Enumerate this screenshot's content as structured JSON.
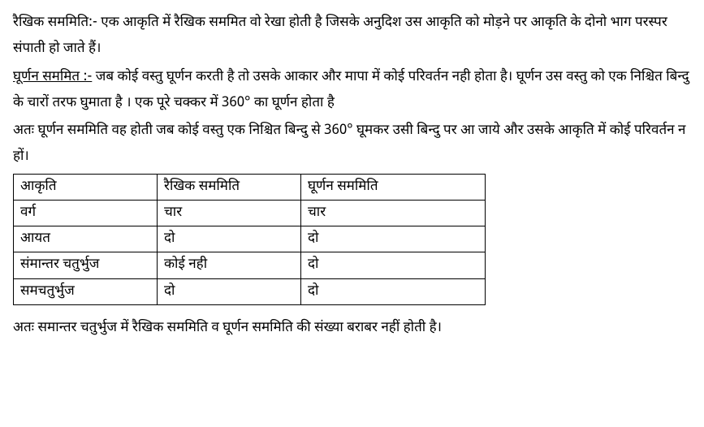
{
  "para1": "रैखिक सममिति:- एक आकृति में रैखिक सममित वो रेखा होती है जिसके अनुदिश उस आकृति को मोड़ने पर आकृति के दोनो भाग परस्पर संपाती हो जाते हैं।",
  "para2_label": "घूर्णन सममित :-",
  "para2_rest": " जब कोई वस्तु घूर्णन करती है तो उसके आकार और मापा में कोई परिवर्तन नही होता है। घूर्णन उस वस्तु को एक निश्चित बिन्दु के चारों तरफ घुमाता है । एक पूरे चक्कर में 360° का घूर्णन होता है",
  "para3": "अतः घूर्णन सममिति वह होती जब कोई वस्तु एक निश्चित बिन्दु से 360° घूमकर उसी बिन्दु पर आ जाये और उसके आकृति में कोई परिवर्तन न हों।",
  "table": {
    "headers": [
      "आकृति",
      "रैखिक सममिति",
      "घूर्णन सममिति"
    ],
    "rows": [
      [
        "वर्ग",
        "चार",
        "चार"
      ],
      [
        "आयत",
        "दो",
        "दो"
      ],
      [
        "संमान्तर चतुर्भुज",
        "कोई नही",
        "दो"
      ],
      [
        "समचतुर्भुज",
        "दो",
        "दो"
      ]
    ]
  },
  "para4": "अतः समान्तर चतुर्भुज में रैखिक सममिति व घूर्णन सममिति की संख्या बराबर नहीं होती है।"
}
